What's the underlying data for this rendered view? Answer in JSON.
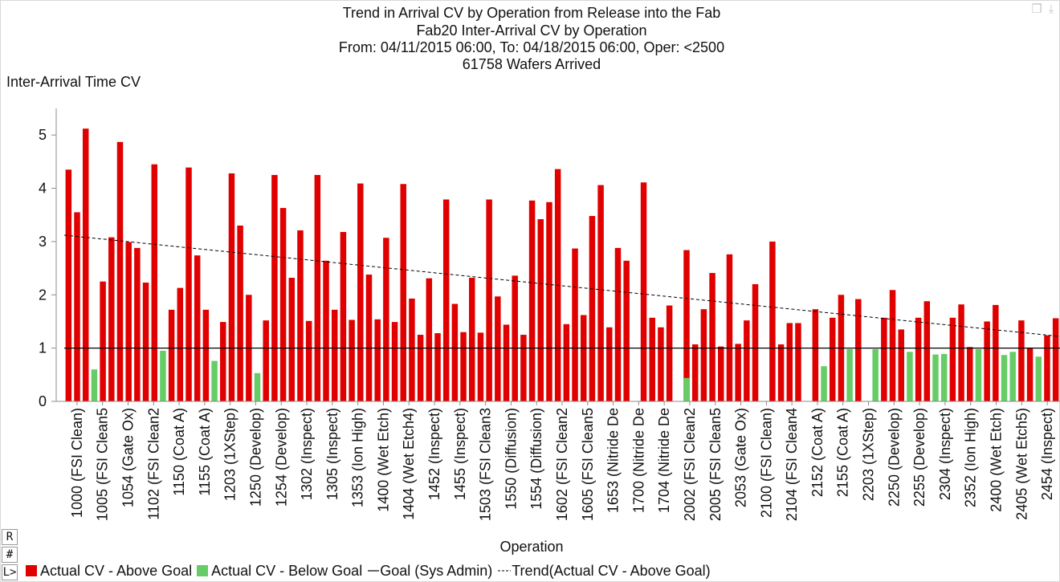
{
  "chart_data": {
    "type": "bar",
    "title_lines": [
      "Trend in Arrival CV by Operation from Release into the Fab",
      "Fab20 Inter-Arrival CV by Operation",
      "From: 04/11/2015 06:00, To: 04/18/2015 06:00, Oper: <2500",
      "61758 Wafers Arrived"
    ],
    "ylabel": "Inter-Arrival Time CV",
    "xlabel": "Operation",
    "ylim": [
      0,
      5.5
    ],
    "yticks": [
      0,
      1,
      2,
      3,
      4,
      5
    ],
    "goal": 1.0,
    "trend": [
      3.12,
      1.22
    ],
    "tick_labels": [
      "1000 (FSI Clean)",
      "1005 (FSI Clean5",
      "1054 (Gate Ox)",
      "1102 (FSI Clean2",
      "1150 (Coat A)",
      "1155 (Coat A)",
      "1203 (1XStep)",
      "1250 (Develop)",
      "1254 (Develop)",
      "1302 (Inspect)",
      "1305 (Inspect)",
      "1353 (Ion High)",
      "1400 (Wet Etch)",
      "1404 (Wet Etch4)",
      "1452 (Inspect)",
      "1455 (Inspect)",
      "1503 (FSI Clean3",
      "1550 (Diffusion)",
      "1554 (Diffusion)",
      "1602 (FSI Clean2",
      "1605 (FSI Clean5",
      "1653 (Nitride De",
      "1700 (Nitride De",
      "1704 (Nitride De",
      "2002 (FSI Clean2",
      "2005 (FSI Clean5",
      "2053 (Gate Ox)",
      "2100 (FSI Clean)",
      "2104 (FSI Clean4",
      "2152 (Coat A)",
      "2155 (Coat A)",
      "2203 (1XStep)",
      "2250 (Develop)",
      "2255 (Develop)",
      "2304 (Inspect)",
      "2352 (Ion High)",
      "2400 (Wet Etch)",
      "2405 (Wet Etch5)",
      "2454 (Inspect)"
    ],
    "series": [
      {
        "name": "Actual CV - Above Goal",
        "color": "#e00000",
        "values": [
          4.35,
          3.55,
          5.12,
          0,
          2.25,
          3.08,
          4.87,
          2.99,
          2.88,
          2.23,
          4.45,
          0,
          1.72,
          2.13,
          4.39,
          2.74,
          1.72,
          0,
          1.49,
          4.28,
          3.3,
          2.0,
          0,
          1.52,
          4.25,
          3.63,
          2.32,
          3.21,
          1.51,
          4.25,
          2.64,
          1.72,
          3.18,
          1.53,
          4.09,
          2.38,
          1.54,
          3.07,
          1.49,
          4.08,
          1.93,
          1.25,
          2.31,
          1.28,
          3.79,
          1.83,
          1.3,
          2.32,
          1.29,
          3.79,
          1.97,
          1.44,
          2.36,
          1.25,
          3.77,
          3.42,
          3.74,
          4.36,
          1.45,
          2.87,
          1.62,
          3.48,
          4.06,
          1.39,
          2.88,
          2.64,
          0,
          4.11,
          1.57,
          1.39,
          1.8,
          0,
          2.84,
          1.07,
          1.73,
          2.41,
          1.03,
          2.76,
          1.08,
          1.52,
          2.2,
          0,
          3.0,
          1.07,
          1.47,
          1.47,
          0,
          1.73,
          0,
          1.57,
          2.0,
          0,
          1.92,
          0,
          0,
          1.57,
          2.09,
          1.35,
          0,
          1.57,
          1.88,
          0,
          0,
          1.57,
          1.82,
          1.02,
          0,
          1.5,
          1.81,
          0,
          0,
          1.52,
          1.01,
          0,
          1.24,
          1.56
        ]
      },
      {
        "name": "Actual CV - Below Goal",
        "color": "#66cc66",
        "values": [
          0,
          0,
          0,
          0.6,
          0,
          0,
          0,
          0,
          0,
          0,
          0,
          0.95,
          0,
          0,
          0,
          0,
          0,
          0.76,
          0,
          0,
          0,
          0,
          0.53,
          0,
          0,
          0,
          0,
          0,
          0,
          0,
          0,
          0,
          0,
          0,
          0,
          0,
          0,
          0,
          0,
          0,
          0,
          0,
          0,
          0,
          0,
          0,
          0,
          0,
          0,
          0,
          0,
          0,
          0,
          0,
          0,
          0,
          0,
          0,
          0,
          0,
          0,
          0,
          0,
          0,
          0,
          0,
          0,
          0,
          0,
          0,
          0,
          0,
          0.44,
          0,
          0,
          0,
          0,
          0,
          0,
          0,
          0,
          0,
          0,
          0,
          0,
          0,
          0,
          0,
          0.66,
          0,
          0,
          0.98,
          0,
          0,
          0.98,
          0,
          0,
          0,
          0.93,
          0,
          0,
          0.88,
          0.89,
          0,
          0,
          0,
          0.98,
          0,
          0,
          0.87,
          0.93,
          0,
          0,
          0.84,
          0,
          0
        ]
      }
    ],
    "legend": [
      {
        "label": "Actual CV - Above Goal",
        "kind": "box",
        "color": "#e00000"
      },
      {
        "label": "Actual CV - Below Goal",
        "kind": "box",
        "color": "#66cc66"
      },
      {
        "label": "Goal (Sys Admin)",
        "kind": "line"
      },
      {
        "label": "Trend(Actual CV - Above Goal)",
        "kind": "dash"
      }
    ]
  },
  "side_buttons": [
    "R",
    "#",
    "L>"
  ]
}
